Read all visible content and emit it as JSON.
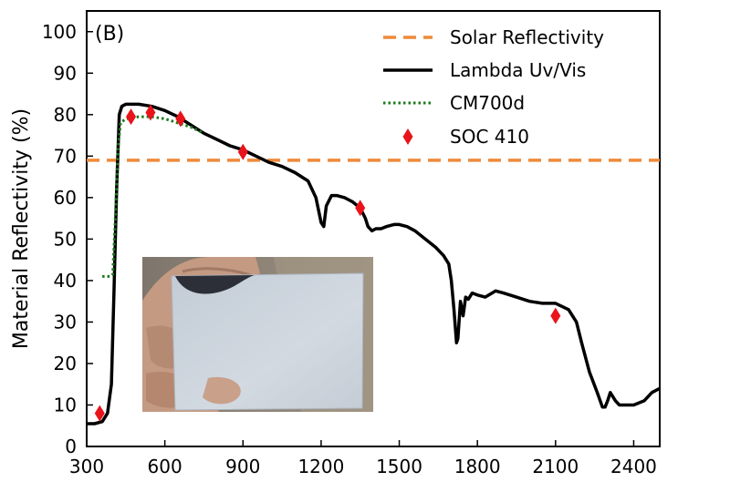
{
  "chart_data": {
    "type": "line",
    "panel_label": "(B)",
    "xlabel": "",
    "ylabel": "Material Reflectivity (%)",
    "xlim": [
      300,
      2500
    ],
    "ylim": [
      0,
      105
    ],
    "xticks": [
      300,
      600,
      900,
      1200,
      1500,
      1800,
      2100,
      2400
    ],
    "yticks": [
      0,
      10,
      20,
      30,
      40,
      50,
      60,
      70,
      80,
      90,
      100
    ],
    "grid": false,
    "legend_position": "top-right",
    "colors": {
      "solar": "#ee8a3a",
      "lambda": "#000000",
      "cm700d": "#1d7a1d",
      "soc410": "#e8141a"
    },
    "series": [
      {
        "name": "Solar Reflectivity",
        "style": "dashed",
        "x": [
          300,
          2500
        ],
        "y": [
          69,
          69
        ]
      },
      {
        "name": "Lambda Uv/Vis",
        "style": "solid",
        "x": [
          300,
          330,
          360,
          380,
          395,
          405,
          415,
          425,
          435,
          450,
          500,
          550,
          600,
          650,
          700,
          750,
          800,
          850,
          900,
          950,
          1000,
          1050,
          1100,
          1150,
          1180,
          1200,
          1210,
          1220,
          1240,
          1260,
          1290,
          1320,
          1350,
          1370,
          1380,
          1395,
          1410,
          1430,
          1450,
          1480,
          1500,
          1530,
          1560,
          1600,
          1640,
          1670,
          1690,
          1700,
          1710,
          1720,
          1725,
          1735,
          1745,
          1755,
          1765,
          1780,
          1800,
          1830,
          1870,
          1900,
          1950,
          2000,
          2050,
          2100,
          2150,
          2180,
          2200,
          2230,
          2260,
          2280,
          2290,
          2300,
          2310,
          2330,
          2345,
          2360,
          2400,
          2440,
          2470,
          2500
        ],
        "y": [
          5.5,
          5.5,
          6,
          8,
          15,
          38,
          62,
          80,
          82,
          82.5,
          82.5,
          82,
          81,
          79.5,
          77.5,
          75.5,
          74,
          72.5,
          71.5,
          70,
          68.5,
          67.5,
          66,
          64,
          60,
          54,
          53,
          58,
          60.5,
          60.5,
          60,
          59,
          57.5,
          55,
          53,
          52,
          52.5,
          52.5,
          53,
          53.5,
          53.5,
          53,
          52,
          50,
          48,
          46,
          44,
          40,
          33,
          25,
          26,
          35,
          31.5,
          36,
          35.5,
          37,
          36.5,
          36,
          37.5,
          37,
          36,
          35,
          34.5,
          34.5,
          33,
          30,
          25,
          18,
          13,
          9.5,
          9.5,
          11,
          13,
          11,
          10,
          10,
          10,
          11,
          13,
          14
        ]
      },
      {
        "name": "CM700d",
        "style": "dotted",
        "x": [
          360,
          375,
          390,
          400,
          410,
          420,
          430,
          450,
          500,
          550,
          600,
          650,
          700,
          750
        ],
        "y": [
          41,
          41,
          41,
          41.5,
          55,
          72,
          78,
          79,
          79.5,
          79.5,
          79,
          78,
          77,
          75.5
        ]
      },
      {
        "name": "SOC 410",
        "style": "marker-diamond",
        "x": [
          350,
          470,
          545,
          660,
          900,
          1350,
          2100
        ],
        "y": [
          8,
          79.5,
          80.5,
          79,
          71,
          57.5,
          31.5
        ]
      }
    ]
  }
}
